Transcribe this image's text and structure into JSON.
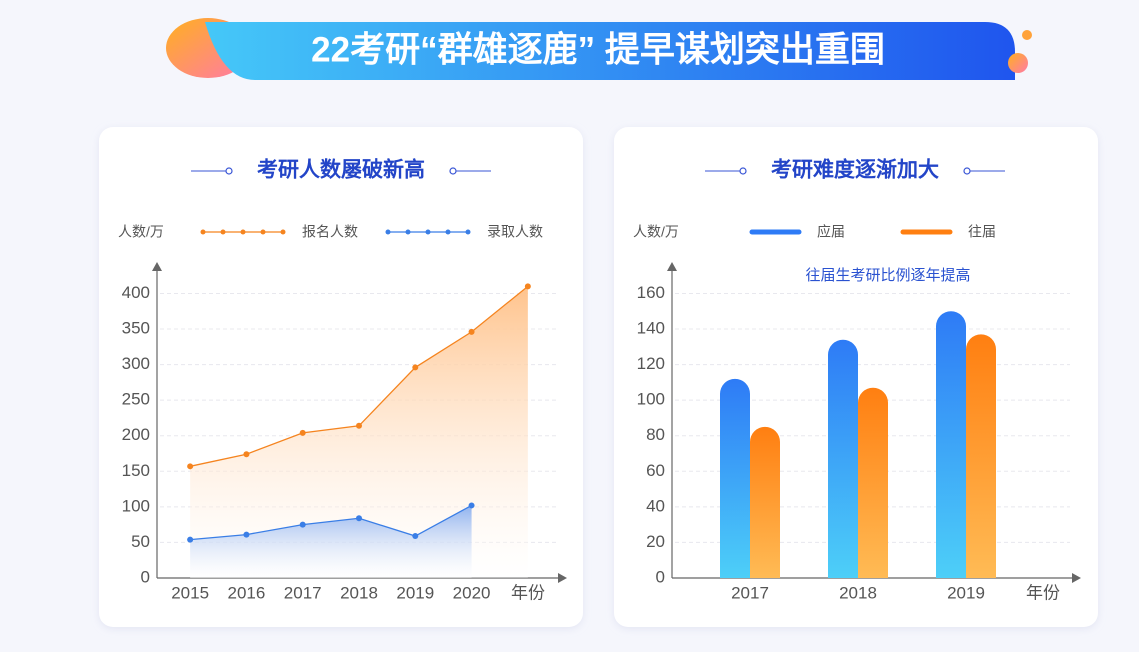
{
  "header": {
    "title": "22考研“群雄逐鹿” 提早谋划突出重围"
  },
  "chart_data": [
    {
      "type": "line",
      "title": "考研人数屡破新高",
      "y_label": "人数/万",
      "x_label": "年份",
      "categories": [
        "2015",
        "2016",
        "2017",
        "2018",
        "2019",
        "2020",
        null
      ],
      "series": [
        {
          "name": "报名人数",
          "color": "#f5841f",
          "gradient": "#ffc38c",
          "values": [
            157,
            174,
            204,
            214,
            296,
            346,
            410
          ]
        },
        {
          "name": "录取人数",
          "color": "#3a7ee6",
          "gradient": "#8fb2ef",
          "values": [
            54,
            61,
            75,
            84,
            59,
            102,
            null
          ]
        }
      ],
      "ylim": [
        0,
        440
      ],
      "yticks": [
        0,
        50,
        100,
        150,
        200,
        250,
        300,
        350,
        400
      ],
      "grid": true,
      "area": true
    },
    {
      "type": "bar",
      "title": "考研难度逐渐加大",
      "y_label": "人数/万",
      "x_label": "年份",
      "annotation": "往届生考研比例逐年提高",
      "categories": [
        "2017",
        "2018",
        "2019"
      ],
      "series": [
        {
          "name": "应届",
          "color": "#2e7bf6",
          "gradient": "#4dcff8",
          "values": [
            112,
            134,
            150
          ]
        },
        {
          "name": "往届",
          "color": "#ff7f11",
          "gradient": "#ffbb55",
          "values": [
            85,
            107,
            137
          ]
        }
      ],
      "ylim": [
        0,
        176
      ],
      "yticks": [
        0,
        20,
        40,
        60,
        80,
        100,
        120,
        140,
        160
      ],
      "grid": true
    }
  ]
}
